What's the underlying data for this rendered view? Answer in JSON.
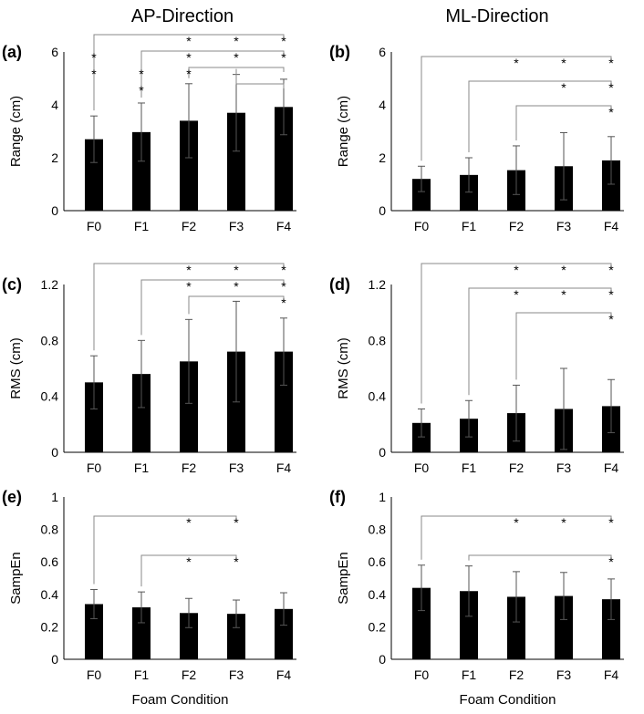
{
  "figure": {
    "column_titles": [
      "AP-Direction",
      "ML-Direction"
    ]
  },
  "chart_data": [
    {
      "panel": "(a)",
      "type": "bar",
      "categories": [
        "F0",
        "F1",
        "F2",
        "F3",
        "F4"
      ],
      "values": [
        2.7,
        2.97,
        3.4,
        3.7,
        3.92
      ],
      "errors": [
        0.88,
        1.1,
        1.4,
        1.45,
        1.05
      ],
      "ylabel": "Range (cm)",
      "xlabel": "",
      "ylim": [
        0,
        6
      ],
      "yticks": [
        0,
        2,
        4,
        6
      ],
      "significance": [
        {
          "from": 0,
          "to": 4,
          "stars": [
            2,
            3,
            4
          ]
        },
        {
          "from": 1,
          "to": 4,
          "stars": [
            0,
            2,
            3,
            4
          ]
        },
        {
          "from": 2,
          "to": 4,
          "stars": [
            0,
            1,
            2
          ]
        },
        {
          "from": 3,
          "to": 4,
          "stars": [
            1
          ]
        }
      ]
    },
    {
      "panel": "(b)",
      "type": "bar",
      "categories": [
        "F0",
        "F1",
        "F2",
        "F3",
        "F4"
      ],
      "values": [
        1.2,
        1.35,
        1.53,
        1.68,
        1.9
      ],
      "errors": [
        0.48,
        0.65,
        0.92,
        1.27,
        0.9
      ],
      "ylabel": "Range (cm)",
      "xlabel": "",
      "ylim": [
        0,
        6
      ],
      "yticks": [
        0,
        2,
        4,
        6
      ],
      "significance": [
        {
          "from": 0,
          "to": 4,
          "stars": [
            2,
            3,
            4
          ]
        },
        {
          "from": 1,
          "to": 4,
          "stars": [
            3,
            4
          ]
        },
        {
          "from": 2,
          "to": 4,
          "stars": [
            4
          ]
        }
      ]
    },
    {
      "panel": "(c)",
      "type": "bar",
      "categories": [
        "F0",
        "F1",
        "F2",
        "F3",
        "F4"
      ],
      "values": [
        0.5,
        0.56,
        0.65,
        0.72,
        0.72
      ],
      "errors": [
        0.19,
        0.24,
        0.3,
        0.36,
        0.24
      ],
      "ylabel": "RMS (cm)",
      "xlabel": "",
      "ylim": [
        0,
        1.2
      ],
      "yticks": [
        0,
        0.4,
        0.8,
        1.2
      ],
      "significance": [
        {
          "from": 0,
          "to": 4,
          "stars": [
            2,
            3,
            4
          ]
        },
        {
          "from": 1,
          "to": 4,
          "stars": [
            2,
            3,
            4
          ]
        },
        {
          "from": 2,
          "to": 4,
          "stars": [
            4
          ]
        }
      ]
    },
    {
      "panel": "(d)",
      "type": "bar",
      "categories": [
        "F0",
        "F1",
        "F2",
        "F3",
        "F4"
      ],
      "values": [
        0.21,
        0.24,
        0.28,
        0.31,
        0.33
      ],
      "errors": [
        0.1,
        0.13,
        0.2,
        0.29,
        0.19
      ],
      "ylabel": "RMS (cm)",
      "xlabel": "",
      "ylim": [
        0,
        1.2
      ],
      "yticks": [
        0,
        0.4,
        0.8,
        1.2
      ],
      "significance": [
        {
          "from": 0,
          "to": 4,
          "stars": [
            2,
            3,
            4
          ]
        },
        {
          "from": 1,
          "to": 4,
          "stars": [
            2,
            3,
            4
          ]
        },
        {
          "from": 2,
          "to": 4,
          "stars": [
            4
          ]
        }
      ]
    },
    {
      "panel": "(e)",
      "type": "bar",
      "categories": [
        "F0",
        "F1",
        "F2",
        "F3",
        "F4"
      ],
      "values": [
        0.34,
        0.32,
        0.285,
        0.28,
        0.31
      ],
      "errors": [
        0.09,
        0.095,
        0.09,
        0.085,
        0.1
      ],
      "ylabel": "SampEn",
      "xlabel": "Foam Condition",
      "ylim": [
        0,
        1
      ],
      "yticks": [
        0,
        0.2,
        0.4,
        0.6,
        0.8,
        1
      ],
      "significance": [
        {
          "from": 0,
          "to": 3,
          "stars": [
            2,
            3
          ]
        },
        {
          "from": 1,
          "to": 3,
          "stars": [
            2,
            3
          ]
        }
      ]
    },
    {
      "panel": "(f)",
      "type": "bar",
      "categories": [
        "F0",
        "F1",
        "F2",
        "F3",
        "F4"
      ],
      "values": [
        0.44,
        0.42,
        0.385,
        0.39,
        0.37
      ],
      "errors": [
        0.14,
        0.155,
        0.155,
        0.145,
        0.125
      ],
      "ylabel": "SampEn",
      "xlabel": "Foam Condition",
      "ylim": [
        0,
        1
      ],
      "yticks": [
        0,
        0.2,
        0.4,
        0.6,
        0.8,
        1
      ],
      "significance": [
        {
          "from": 0,
          "to": 4,
          "stars": [
            2,
            3,
            4
          ]
        },
        {
          "from": 1,
          "to": 4,
          "stars": [
            4
          ]
        }
      ]
    }
  ]
}
